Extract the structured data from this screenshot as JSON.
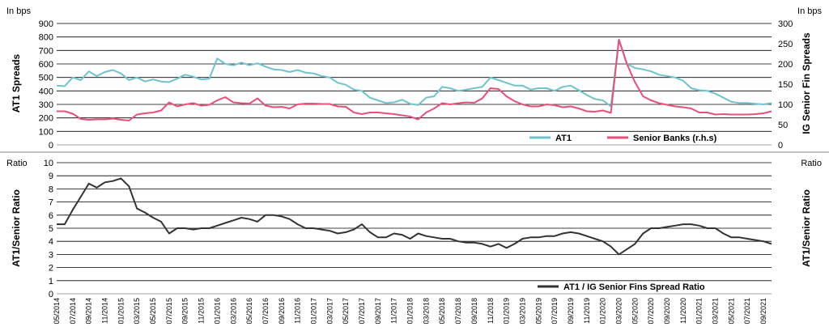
{
  "chart_data": [
    {
      "type": "line",
      "left_axis_unit": "In bps",
      "right_axis_unit": "In bps",
      "ylabel": "AT1 Spreads",
      "ylabel_right": "IG Senior Fin Spreads",
      "ylim": [
        0,
        900
      ],
      "ylim_right": [
        0,
        300
      ],
      "y_ticks": [
        "0",
        "100",
        "200",
        "300",
        "400",
        "500",
        "600",
        "700",
        "800",
        "900"
      ],
      "y_ticks_right": [
        "0",
        "50",
        "100",
        "150",
        "200",
        "250",
        "300"
      ],
      "grid": true,
      "legend_position": "bottom-right",
      "series": [
        {
          "name": "AT1",
          "axis": "left",
          "color": "#6EC3CF",
          "x": [
            "2014-05",
            "2014-06",
            "2014-07",
            "2014-08",
            "2014-09",
            "2014-10",
            "2014-11",
            "2014-12",
            "2015-01",
            "2015-02",
            "2015-03",
            "2015-04",
            "2015-05",
            "2015-06",
            "2015-07",
            "2015-08",
            "2015-09",
            "2015-10",
            "2015-11",
            "2015-12",
            "2016-01",
            "2016-02",
            "2016-03",
            "2016-04",
            "2016-05",
            "2016-06",
            "2016-07",
            "2016-08",
            "2016-09",
            "2016-10",
            "2016-11",
            "2016-12",
            "2017-01",
            "2017-02",
            "2017-03",
            "2017-04",
            "2017-05",
            "2017-06",
            "2017-07",
            "2017-08",
            "2017-09",
            "2017-10",
            "2017-11",
            "2017-12",
            "2018-01",
            "2018-02",
            "2018-03",
            "2018-04",
            "2018-05",
            "2018-06",
            "2018-07",
            "2018-08",
            "2018-09",
            "2018-10",
            "2018-11",
            "2018-12",
            "2019-01",
            "2019-02",
            "2019-03",
            "2019-04",
            "2019-05",
            "2019-06",
            "2019-07",
            "2019-08",
            "2019-09",
            "2019-10",
            "2019-11",
            "2019-12",
            "2020-01",
            "2020-02",
            "2020-03",
            "2020-04",
            "2020-05",
            "2020-06",
            "2020-07",
            "2020-08",
            "2020-09",
            "2020-10",
            "2020-11",
            "2020-12",
            "2021-01",
            "2021-02",
            "2021-03",
            "2021-04",
            "2021-05",
            "2021-06",
            "2021-07",
            "2021-08",
            "2021-09",
            "2021-10"
          ],
          "values": [
            440,
            435,
            500,
            480,
            545,
            510,
            540,
            555,
            530,
            480,
            500,
            470,
            485,
            470,
            465,
            490,
            520,
            505,
            485,
            490,
            640,
            600,
            590,
            610,
            590,
            605,
            580,
            560,
            555,
            540,
            555,
            535,
            530,
            510,
            500,
            460,
            445,
            410,
            400,
            350,
            330,
            310,
            315,
            335,
            305,
            295,
            350,
            360,
            430,
            420,
            400,
            410,
            420,
            430,
            500,
            480,
            460,
            440,
            440,
            410,
            420,
            420,
            400,
            430,
            440,
            405,
            370,
            340,
            330,
            285,
            780,
            600,
            570,
            560,
            545,
            520,
            510,
            500,
            475,
            420,
            405,
            400,
            380,
            350,
            320,
            310,
            310,
            305,
            300,
            310
          ]
        },
        {
          "name": "Senior Banks (r.h.s)",
          "axis": "right",
          "color": "#E8507A",
          "x": [
            "2014-05",
            "2014-06",
            "2014-07",
            "2014-08",
            "2014-09",
            "2014-10",
            "2014-11",
            "2014-12",
            "2015-01",
            "2015-02",
            "2015-03",
            "2015-04",
            "2015-05",
            "2015-06",
            "2015-07",
            "2015-08",
            "2015-09",
            "2015-10",
            "2015-11",
            "2015-12",
            "2016-01",
            "2016-02",
            "2016-03",
            "2016-04",
            "2016-05",
            "2016-06",
            "2016-07",
            "2016-08",
            "2016-09",
            "2016-10",
            "2016-11",
            "2016-12",
            "2017-01",
            "2017-02",
            "2017-03",
            "2017-04",
            "2017-05",
            "2017-06",
            "2017-07",
            "2017-08",
            "2017-09",
            "2017-10",
            "2017-11",
            "2017-12",
            "2018-01",
            "2018-02",
            "2018-03",
            "2018-04",
            "2018-05",
            "2018-06",
            "2018-07",
            "2018-08",
            "2018-09",
            "2018-10",
            "2018-11",
            "2018-12",
            "2019-01",
            "2019-02",
            "2019-03",
            "2019-04",
            "2019-05",
            "2019-06",
            "2019-07",
            "2019-08",
            "2019-09",
            "2019-10",
            "2019-11",
            "2019-12",
            "2020-01",
            "2020-02",
            "2020-03",
            "2020-04",
            "2020-05",
            "2020-06",
            "2020-07",
            "2020-08",
            "2020-09",
            "2020-10",
            "2020-11",
            "2020-12",
            "2021-01",
            "2021-02",
            "2021-03",
            "2021-04",
            "2021-05",
            "2021-06",
            "2021-07",
            "2021-08",
            "2021-09",
            "2021-10"
          ],
          "values": [
            83,
            83,
            77,
            64,
            62,
            63,
            63,
            65,
            62,
            60,
            75,
            78,
            80,
            85,
            105,
            95,
            100,
            103,
            97,
            99,
            110,
            118,
            105,
            103,
            102,
            115,
            97,
            93,
            94,
            90,
            100,
            102,
            102,
            101,
            101,
            95,
            94,
            80,
            76,
            80,
            80,
            78,
            76,
            73,
            70,
            63,
            80,
            90,
            103,
            100,
            103,
            105,
            104,
            115,
            140,
            138,
            120,
            108,
            100,
            95,
            95,
            100,
            98,
            93,
            95,
            90,
            83,
            82,
            85,
            79,
            260,
            200,
            155,
            120,
            110,
            103,
            99,
            95,
            93,
            90,
            80,
            80,
            75,
            76,
            75,
            75,
            75,
            76,
            78,
            83
          ]
        }
      ]
    },
    {
      "type": "line",
      "left_axis_unit": "Ratio",
      "right_axis_unit": "Ratio",
      "ylabel": "AT1/Senior Ratio",
      "ylabel_right": "AT1/Senior Ratio",
      "ylim": [
        0,
        10
      ],
      "y_ticks": [
        "0",
        "1",
        "2",
        "3",
        "4",
        "5",
        "6",
        "7",
        "8",
        "9",
        "10"
      ],
      "grid": true,
      "legend_position": "bottom-right",
      "x_ticks": [
        "05/2014",
        "07/2014",
        "09/2014",
        "11/2014",
        "01/2015",
        "03/2015",
        "05/2015",
        "07/2015",
        "09/2015",
        "11/2015",
        "01/2016",
        "03/2016",
        "05/2016",
        "07/2016",
        "09/2016",
        "11/2016",
        "01/2017",
        "03/2017",
        "05/2017",
        "07/2017",
        "09/2017",
        "11/2017",
        "01/2018",
        "03/2018",
        "05/2018",
        "07/2018",
        "09/2018",
        "11/2018",
        "01/2019",
        "03/2019",
        "05/2019",
        "07/2019",
        "09/2019",
        "11/2019",
        "01/2020",
        "03/2020",
        "05/2020",
        "07/2020",
        "09/2020",
        "11/2020",
        "01/2021",
        "03/2021",
        "05/2021",
        "07/2021",
        "09/2021"
      ],
      "series": [
        {
          "name": "AT1 / IG Senior Fins Spread Ratio",
          "axis": "left",
          "color": "#333333",
          "x": [
            "2014-05",
            "2014-06",
            "2014-07",
            "2014-08",
            "2014-09",
            "2014-10",
            "2014-11",
            "2014-12",
            "2015-01",
            "2015-02",
            "2015-03",
            "2015-04",
            "2015-05",
            "2015-06",
            "2015-07",
            "2015-08",
            "2015-09",
            "2015-10",
            "2015-11",
            "2015-12",
            "2016-01",
            "2016-02",
            "2016-03",
            "2016-04",
            "2016-05",
            "2016-06",
            "2016-07",
            "2016-08",
            "2016-09",
            "2016-10",
            "2016-11",
            "2016-12",
            "2017-01",
            "2017-02",
            "2017-03",
            "2017-04",
            "2017-05",
            "2017-06",
            "2017-07",
            "2017-08",
            "2017-09",
            "2017-10",
            "2017-11",
            "2017-12",
            "2018-01",
            "2018-02",
            "2018-03",
            "2018-04",
            "2018-05",
            "2018-06",
            "2018-07",
            "2018-08",
            "2018-09",
            "2018-10",
            "2018-11",
            "2018-12",
            "2019-01",
            "2019-02",
            "2019-03",
            "2019-04",
            "2019-05",
            "2019-06",
            "2019-07",
            "2019-08",
            "2019-09",
            "2019-10",
            "2019-11",
            "2019-12",
            "2020-01",
            "2020-02",
            "2020-03",
            "2020-04",
            "2020-05",
            "2020-06",
            "2020-07",
            "2020-08",
            "2020-09",
            "2020-10",
            "2020-11",
            "2020-12",
            "2021-01",
            "2021-02",
            "2021-03",
            "2021-04",
            "2021-05",
            "2021-06",
            "2021-07",
            "2021-08",
            "2021-09",
            "2021-10"
          ],
          "values": [
            5.3,
            5.3,
            6.4,
            7.4,
            8.4,
            8.1,
            8.5,
            8.6,
            8.8,
            8.2,
            6.5,
            6.2,
            5.8,
            5.5,
            4.6,
            5.0,
            5.0,
            4.9,
            5.0,
            5.0,
            5.2,
            5.4,
            5.6,
            5.8,
            5.7,
            5.5,
            6.0,
            6.0,
            5.9,
            5.7,
            5.3,
            5.0,
            5.0,
            4.9,
            4.8,
            4.6,
            4.7,
            4.9,
            5.3,
            4.7,
            4.3,
            4.3,
            4.6,
            4.5,
            4.2,
            4.6,
            4.4,
            4.3,
            4.2,
            4.2,
            4.0,
            3.9,
            3.9,
            3.8,
            3.6,
            3.8,
            3.5,
            3.8,
            4.2,
            4.3,
            4.3,
            4.4,
            4.4,
            4.6,
            4.7,
            4.6,
            4.4,
            4.2,
            4.0,
            3.6,
            3.0,
            3.4,
            3.8,
            4.6,
            5.0,
            5.0,
            5.1,
            5.2,
            5.3,
            5.3,
            5.2,
            5.0,
            5.0,
            4.6,
            4.3,
            4.3,
            4.2,
            4.1,
            4.0,
            3.8
          ]
        }
      ]
    }
  ]
}
